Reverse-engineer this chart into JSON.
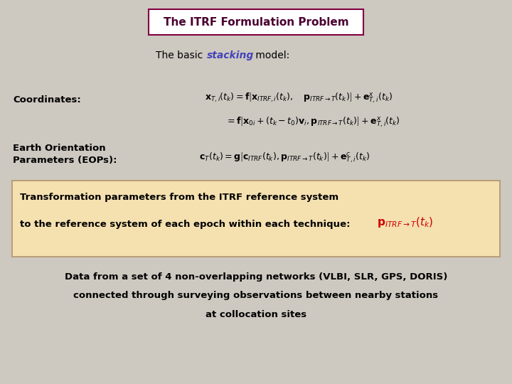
{
  "bg_color": "#cdc8c0",
  "title_text": "The ITRF Formulation Problem",
  "title_bg": "#ffffff",
  "title_border": "#800040",
  "title_fontsize": 11,
  "subtitle_fontsize": 10,
  "subtitle_stacking_color": "#4444bb",
  "coord_label": "Coordinates:",
  "eop_label1": "Earth Orientation",
  "eop_label2": "Parameters (EOPs):",
  "label_fontsize": 9.5,
  "eq1": "$\\mathbf{x}_{T,i}(t_k) = \\mathbf{f}\\left[\\mathbf{x}_{ITRF,i}(t_k),\\quad \\mathbf{p}_{ITRF\\rightarrow T}(t_k)\\right]+\\mathbf{e}^x_{T,i}(t_k)$",
  "eq2": "$= \\mathbf{f}\\left[\\mathbf{x}_{0i}+(t_k-t_0)\\mathbf{v}_i,\\mathbf{p}_{ITRF\\rightarrow T}(t_k)\\right]+\\mathbf{e}^x_{T,i}(t_k)$",
  "eq3": "$\\mathbf{c}_T(t_k) = \\mathbf{g}\\left[\\mathbf{c}_{ITRF}(t_k),\\mathbf{p}_{ITRF\\rightarrow T}(t_k)\\right]+\\mathbf{e}^c_{T,i}(t_k)$",
  "eq_fontsize": 9,
  "box_bg": "#f5e0b0",
  "box_border": "#b0956a",
  "trans_line1": "Transformation parameters from the ITRF reference system",
  "trans_line2": "to the reference system of each epoch within each technique:",
  "trans_p": "$\\mathbf{p}_{ITRF\\rightarrow T}(t_k)$",
  "trans_p_color": "#cc0000",
  "trans_fontsize": 9.5,
  "data_line1": "Data from a set of 4 non-overlapping networks (VLBI, SLR, GPS, DORIS)",
  "data_line2": "connected through surveying observations between nearby stations",
  "data_line3": "at collocation sites",
  "data_fontsize": 9.5
}
